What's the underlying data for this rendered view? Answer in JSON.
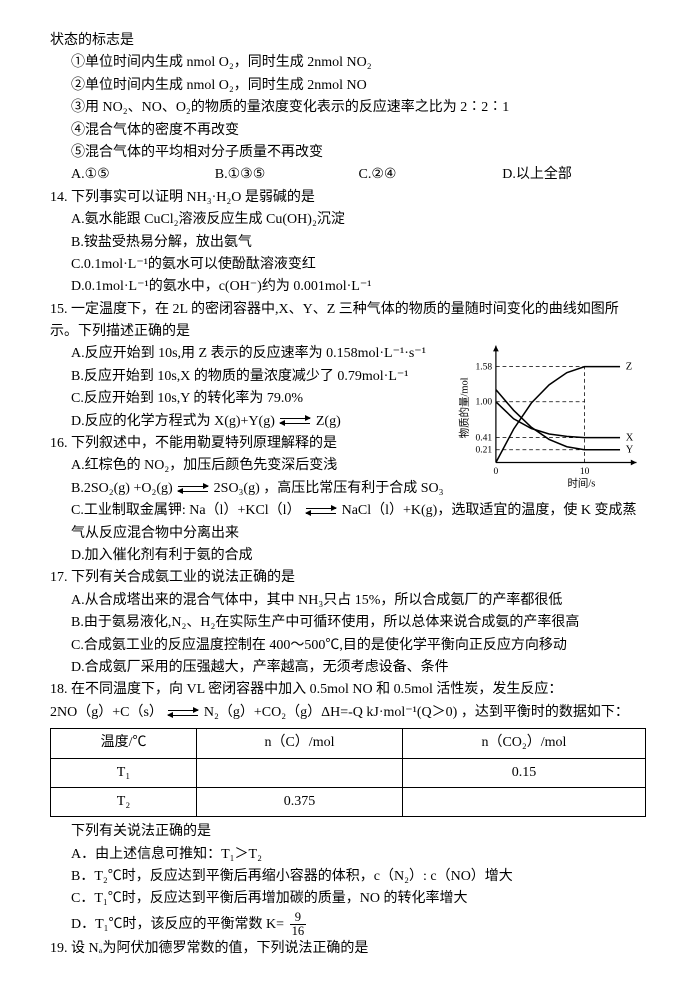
{
  "header": "状态的标志是",
  "stems": {
    "s1": "①单位时间内生成 nmol O₂，同时生成 2nmol NO₂",
    "s2": "②单位时间内生成 nmol O₂，同时生成 2nmol NO",
    "s3": "③用 NO₂、NO、O₂的物质的量浓度变化表示的反应速率之比为 2∶2∶1",
    "s4": "④混合气体的密度不再改变",
    "s5": "⑤混合气体的平均相对分子质量不再改变"
  },
  "q13opts": {
    "a": "A.①⑤",
    "b": "B.①③⑤",
    "c": "C.②④",
    "d": "D.以上全部"
  },
  "q14": {
    "stem": "14. 下列事实可以证明 NH₃·H₂O 是弱碱的是",
    "a": "A.氨水能跟 CuCl₂溶液反应生成 Cu(OH)₂沉淀",
    "b": "B.铵盐受热易分解，放出氨气",
    "c": "C.0.1mol·L⁻¹的氨水可以使酚酞溶液变红",
    "d": "D.0.1mol·L⁻¹的氨水中，c(OH⁻)约为 0.001mol·L⁻¹"
  },
  "q15": {
    "stem": "15. 一定温度下，在 2L 的密闭容器中,X、Y、Z 三种气体的物质的量随时间变化的曲线如图所示。下列描述正确的是",
    "a": "A.反应开始到 10s,用 Z 表示的反应速率为 0.158mol·L⁻¹·s⁻¹",
    "b": "B.反应开始到 10s,X 的物质的量浓度减少了 0.79mol·L⁻¹",
    "c": "C.反应开始到 10s,Y 的转化率为 79.0%",
    "d_pre": "D.反应的化学方程式为 X(g)+Y(g)",
    "d_post": " Z(g)"
  },
  "q16": {
    "stem": "16. 下列叙述中，不能用勒夏特列原理解释的是",
    "a": "A.红棕色的 NO₂，加压后颜色先变深后变浅",
    "b_pre": "B.2SO₂(g) +O₂(g) ",
    "b_post": " 2SO₃(g) ，高压比常压有利于合成 SO₃",
    "c_pre": "C.工业制取金属钾: Na（l）+KCl（l）",
    "c_post": " NaCl（l）+K(g)，选取适宜的温度，使 K 变成蒸气从反应混合物中分离出来",
    "d": "D.加入催化剂有利于氨的合成"
  },
  "q17": {
    "stem": "17. 下列有关合成氨工业的说法正确的是",
    "a": "A.从合成塔出来的混合气体中，其中 NH₃只占 15%，所以合成氨厂的产率都很低",
    "b": "B.由于氨易液化,N₂、H₂在实际生产中可循环使用，所以总体来说合成氨的产率很高",
    "c": "C.合成氨工业的反应温度控制在 400～500℃,目的是使化学平衡向正反应方向移动",
    "d": "D.合成氨厂采用的压强越大，产率越高，无须考虑设备、条件"
  },
  "q18": {
    "stem": "18. 在不同温度下，向 VL 密闭容器中加入 0.5mol NO 和 0.5mol 活性炭，发生反应：",
    "eq_pre": "2NO（g）+C（s）",
    "eq_post": " N₂（g）+CO₂（g）ΔH=-Q kJ·mol⁻¹(Q＞0) ，达到平衡时的数据如下：",
    "table": {
      "headers": [
        "温度/℃",
        "n（C）/mol",
        "n（CO₂）/mol"
      ],
      "rows": [
        [
          "T₁",
          "",
          "0.15"
        ],
        [
          "T₂",
          "0.375",
          ""
        ]
      ]
    },
    "sub": "下列有关说法正确的是",
    "a": "A．由上述信息可推知：T₁＞T₂",
    "b": "B．T₂℃时，反应达到平衡后再缩小容器的体积，c（N₂）: c（NO）增大",
    "c": "C．T₁℃时，反应达到平衡后再增加碳的质量，NO 的转化率增大",
    "d_pre": "D．T₁℃时，该反应的平衡常数 K=",
    "frac_num": "9",
    "frac_den": "16"
  },
  "q19": "19. 设 Nₐ为阿伏加德罗常数的值，下列说法正确的是",
  "chart": {
    "width": 190,
    "height": 150,
    "bg": "#ffffff",
    "axis_color": "#000000",
    "dash": "4,3",
    "ylabel": "物质的量/mol",
    "xlabel": "时间/s",
    "yticks": [
      {
        "v": 0.21,
        "label": "0.21"
      },
      {
        "v": 0.41,
        "label": "0.41"
      },
      {
        "v": 1.0,
        "label": "1.00"
      },
      {
        "v": 1.58,
        "label": "1.58"
      }
    ],
    "xmax": 15,
    "xmark": 10,
    "ymax": 1.8,
    "series": {
      "Z": {
        "label": "Z",
        "points": [
          [
            0,
            0
          ],
          [
            2,
            0.55
          ],
          [
            4,
            0.98
          ],
          [
            6,
            1.28
          ],
          [
            8,
            1.48
          ],
          [
            10,
            1.58
          ],
          [
            12,
            1.58
          ],
          [
            14,
            1.58
          ]
        ]
      },
      "X": {
        "label": "X",
        "points": [
          [
            0,
            1.0
          ],
          [
            2,
            0.72
          ],
          [
            4,
            0.56
          ],
          [
            6,
            0.47
          ],
          [
            8,
            0.43
          ],
          [
            10,
            0.41
          ],
          [
            12,
            0.41
          ],
          [
            14,
            0.41
          ]
        ]
      },
      "Y": {
        "label": "Y",
        "points": [
          [
            0,
            1.2
          ],
          [
            2,
            0.86
          ],
          [
            4,
            0.58
          ],
          [
            6,
            0.38
          ],
          [
            8,
            0.26
          ],
          [
            10,
            0.21
          ],
          [
            12,
            0.21
          ],
          [
            14,
            0.21
          ]
        ]
      }
    }
  }
}
